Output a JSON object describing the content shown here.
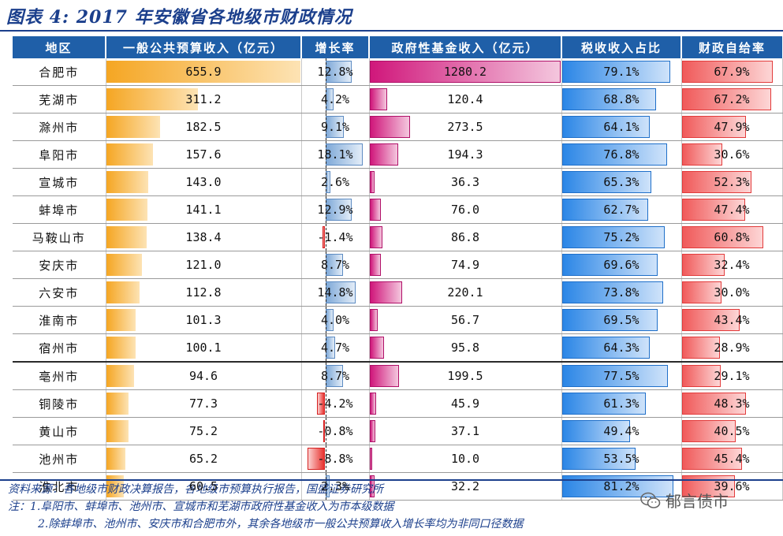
{
  "title": "图表 4:  2017 年安徽省各地级市财政情况",
  "headers": {
    "region": "地区",
    "budget": "一般公共预算收入（亿元）",
    "growth": "增长率",
    "fund": "政府性基金收入（亿元）",
    "tax": "税收收入占比",
    "self": "财政自给率"
  },
  "rows": [
    {
      "region": "合肥市",
      "budget": 655.9,
      "growth": 12.8,
      "fund": 1280.2,
      "tax": 79.1,
      "self": 67.9,
      "budget_t": "655.9",
      "growth_t": "12.8%",
      "fund_t": "1280.2",
      "tax_t": "79.1%",
      "self_t": "67.9%"
    },
    {
      "region": "芜湖市",
      "budget": 311.2,
      "growth": 4.2,
      "fund": 120.4,
      "tax": 68.8,
      "self": 67.2,
      "budget_t": "311.2",
      "growth_t": "4.2%",
      "fund_t": "120.4",
      "tax_t": "68.8%",
      "self_t": "67.2%"
    },
    {
      "region": "滁州市",
      "budget": 182.5,
      "growth": 9.1,
      "fund": 273.5,
      "tax": 64.1,
      "self": 47.9,
      "budget_t": "182.5",
      "growth_t": "9.1%",
      "fund_t": "273.5",
      "tax_t": "64.1%",
      "self_t": "47.9%"
    },
    {
      "region": "阜阳市",
      "budget": 157.6,
      "growth": 18.1,
      "fund": 194.3,
      "tax": 76.8,
      "self": 30.6,
      "budget_t": "157.6",
      "growth_t": "18.1%",
      "fund_t": "194.3",
      "tax_t": "76.8%",
      "self_t": "30.6%"
    },
    {
      "region": "宣城市",
      "budget": 143.0,
      "growth": 2.6,
      "fund": 36.3,
      "tax": 65.3,
      "self": 52.3,
      "budget_t": "143.0",
      "growth_t": "2.6%",
      "fund_t": "36.3",
      "tax_t": "65.3%",
      "self_t": "52.3%"
    },
    {
      "region": "蚌埠市",
      "budget": 141.1,
      "growth": 12.9,
      "fund": 76.0,
      "tax": 62.7,
      "self": 47.4,
      "budget_t": "141.1",
      "growth_t": "12.9%",
      "fund_t": "76.0",
      "tax_t": "62.7%",
      "self_t": "47.4%"
    },
    {
      "region": "马鞍山市",
      "budget": 138.4,
      "growth": -1.4,
      "fund": 86.8,
      "tax": 75.2,
      "self": 60.8,
      "budget_t": "138.4",
      "growth_t": "-1.4%",
      "fund_t": "86.8",
      "tax_t": "75.2%",
      "self_t": "60.8%"
    },
    {
      "region": "安庆市",
      "budget": 121.0,
      "growth": 8.7,
      "fund": 74.9,
      "tax": 69.6,
      "self": 32.4,
      "budget_t": "121.0",
      "growth_t": "8.7%",
      "fund_t": "74.9",
      "tax_t": "69.6%",
      "self_t": "32.4%"
    },
    {
      "region": "六安市",
      "budget": 112.8,
      "growth": 14.8,
      "fund": 220.1,
      "tax": 73.8,
      "self": 30.0,
      "budget_t": "112.8",
      "growth_t": "14.8%",
      "fund_t": "220.1",
      "tax_t": "73.8%",
      "self_t": "30.0%"
    },
    {
      "region": "淮南市",
      "budget": 101.3,
      "growth": 4.0,
      "fund": 56.7,
      "tax": 69.5,
      "self": 43.4,
      "budget_t": "101.3",
      "growth_t": "4.0%",
      "fund_t": "56.7",
      "tax_t": "69.5%",
      "self_t": "43.4%"
    },
    {
      "region": "宿州市",
      "budget": 100.1,
      "growth": 4.7,
      "fund": 95.8,
      "tax": 64.3,
      "self": 28.9,
      "budget_t": "100.1",
      "growth_t": "4.7%",
      "fund_t": "95.8",
      "tax_t": "64.3%",
      "self_t": "28.9%"
    },
    {
      "region": "亳州市",
      "budget": 94.6,
      "growth": 8.7,
      "fund": 199.5,
      "tax": 77.5,
      "self": 29.1,
      "budget_t": "94.6",
      "growth_t": "8.7%",
      "fund_t": "199.5",
      "tax_t": "77.5%",
      "self_t": "29.1%"
    },
    {
      "region": "铜陵市",
      "budget": 77.3,
      "growth": -4.2,
      "fund": 45.9,
      "tax": 61.3,
      "self": 48.3,
      "budget_t": "77.3",
      "growth_t": "-4.2%",
      "fund_t": "45.9",
      "tax_t": "61.3%",
      "self_t": "48.3%"
    },
    {
      "region": "黄山市",
      "budget": 75.2,
      "growth": -0.8,
      "fund": 37.1,
      "tax": 49.4,
      "self": 40.5,
      "budget_t": "75.2",
      "growth_t": "-0.8%",
      "fund_t": "37.1",
      "tax_t": "49.4%",
      "self_t": "40.5%"
    },
    {
      "region": "池州市",
      "budget": 65.2,
      "growth": -8.8,
      "fund": 10.0,
      "tax": 53.5,
      "self": 45.4,
      "budget_t": "65.2",
      "growth_t": "-8.8%",
      "fund_t": "10.0",
      "tax_t": "53.5%",
      "self_t": "45.4%"
    },
    {
      "region": "淮北市",
      "budget": 60.5,
      "growth": 2.3,
      "fund": 32.2,
      "tax": 81.2,
      "self": 39.6,
      "budget_t": "60.5",
      "growth_t": "2.3%",
      "fund_t": "32.2",
      "tax_t": "81.2%",
      "self_t": "39.6%"
    }
  ],
  "footer": {
    "source": "资料来源：各地级市财政决算报告，各地级市预算执行报告，国盛证券研究所",
    "note1": "注：1.阜阳市、蚌埠市、池州市、宣城市和芜湖市政府性基金收入为市本级数据",
    "note2": "2.除蚌埠市、池州市、安庆市和合肥市外，其余各地级市一般公共预算收入增长率均为非同口径数据"
  },
  "watermark": "郁言债市",
  "colors": {
    "header": "#1f5fa8",
    "title": "#1b3f8c"
  }
}
